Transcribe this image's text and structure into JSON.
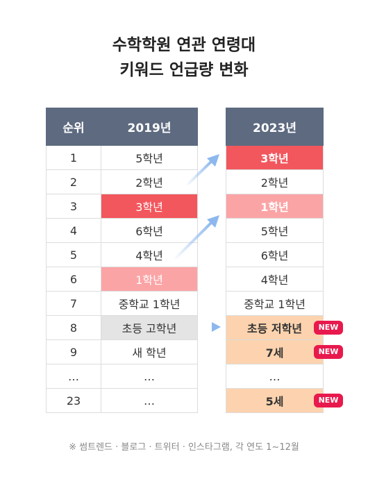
{
  "title": {
    "line1": "수학학원 연관 연령대",
    "line2": "키워드 언급량 변화"
  },
  "table_2019": {
    "header_rank": "순위",
    "header_year": "2019년",
    "rows": [
      {
        "rank": "1",
        "keyword": "5학년"
      },
      {
        "rank": "2",
        "keyword": "2학년"
      },
      {
        "rank": "3",
        "keyword": "3학년"
      },
      {
        "rank": "4",
        "keyword": "6학년"
      },
      {
        "rank": "5",
        "keyword": "4학년"
      },
      {
        "rank": "6",
        "keyword": "1학년"
      },
      {
        "rank": "7",
        "keyword": "중학교 1학년"
      },
      {
        "rank": "8",
        "keyword": "초등 고학년"
      },
      {
        "rank": "9",
        "keyword": "새 학년"
      },
      {
        "rank": "…",
        "keyword": "…"
      },
      {
        "rank": "23",
        "keyword": "…"
      }
    ]
  },
  "table_2023": {
    "header_year": "2023년",
    "rows": [
      {
        "keyword": "3학년"
      },
      {
        "keyword": "2학년"
      },
      {
        "keyword": "1학년"
      },
      {
        "keyword": "5학년"
      },
      {
        "keyword": "6학년"
      },
      {
        "keyword": "4학년"
      },
      {
        "keyword": "중학교 1학년"
      },
      {
        "keyword": "초등 저학년",
        "badge": "NEW"
      },
      {
        "keyword": "7세",
        "badge": "NEW"
      },
      {
        "keyword": "…"
      },
      {
        "keyword": "5세",
        "badge": "NEW"
      }
    ]
  },
  "colors": {
    "header": "#5d6a80",
    "highlight_red": "#f2575d",
    "highlight_pink": "#fba4a6",
    "highlight_peach": "#fcd3ae",
    "highlight_grey": "#e4e4e4",
    "badge": "#e8194d",
    "arrow": "#8db8ee"
  },
  "footnote": "※ 썸트렌드 · 블로그 · 트위터 · 인스타그램, 각 연도 1~12월"
}
